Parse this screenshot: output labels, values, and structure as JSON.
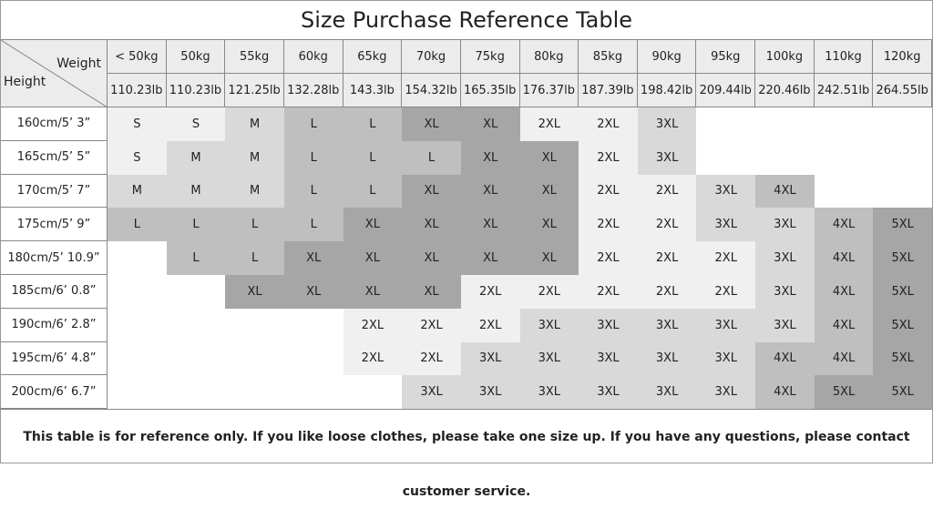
{
  "title": "Size Purchase Reference Table",
  "table": {
    "weight_label": "Weight",
    "height_label": "Height",
    "weights_kg": [
      "< 50kg",
      "50kg",
      "55kg",
      "60kg",
      "65kg",
      "70kg",
      "75kg",
      "80kg",
      "85kg",
      "90kg",
      "95kg",
      "100kg",
      "110kg",
      "120kg"
    ],
    "weights_lb": [
      "110.23lb",
      "110.23lb",
      "121.25lb",
      "132.28lb",
      "143.3lb",
      "154.32lb",
      "165.35lb",
      "176.37lb",
      "187.39lb",
      "198.42lb",
      "209.44lb",
      "220.46lb",
      "242.51lb",
      "264.55lb"
    ],
    "size_colors": {
      "S": "#f0f0f0",
      "M": "#d9d9d9",
      "L": "#bfbfbf",
      "XL": "#a6a6a6",
      "2XL": "#f0f0f0",
      "3XL": "#d9d9d9",
      "4XL": "#bfbfbf",
      "5XL": "#a6a6a6"
    },
    "rows": [
      {
        "height": "160cm/5’ 3”",
        "sizes": [
          "S",
          "S",
          "M",
          "L",
          "L",
          "XL",
          "XL",
          "2XL",
          "2XL",
          "3XL",
          null,
          null,
          null,
          null
        ]
      },
      {
        "height": "165cm/5’ 5”",
        "sizes": [
          "S",
          "M",
          "M",
          "L",
          "L",
          "L",
          "XL",
          "XL",
          "2XL",
          "3XL",
          null,
          null,
          null,
          null
        ]
      },
      {
        "height": "170cm/5’ 7”",
        "sizes": [
          "M",
          "M",
          "M",
          "L",
          "L",
          "XL",
          "XL",
          "XL",
          "2XL",
          "2XL",
          "3XL",
          "4XL",
          null,
          null
        ]
      },
      {
        "height": "175cm/5’ 9”",
        "sizes": [
          "L",
          "L",
          "L",
          "L",
          "XL",
          "XL",
          "XL",
          "XL",
          "2XL",
          "2XL",
          "3XL",
          "3XL",
          "4XL",
          "5XL"
        ]
      },
      {
        "height": "180cm/5’ 10.9”",
        "sizes": [
          null,
          "L",
          "L",
          "XL",
          "XL",
          "XL",
          "XL",
          "XL",
          "2XL",
          "2XL",
          "2XL",
          "3XL",
          "4XL",
          "5XL"
        ]
      },
      {
        "height": "185cm/6’ 0.8”",
        "sizes": [
          null,
          null,
          "XL",
          "XL",
          "XL",
          "XL",
          "2XL",
          "2XL",
          "2XL",
          "2XL",
          "2XL",
          "3XL",
          "4XL",
          "5XL"
        ]
      },
      {
        "height": "190cm/6’ 2.8”",
        "sizes": [
          null,
          null,
          null,
          null,
          "2XL",
          "2XL",
          "2XL",
          "3XL",
          "3XL",
          "3XL",
          "3XL",
          "3XL",
          "4XL",
          "5XL"
        ]
      },
      {
        "height": "195cm/6’ 4.8”",
        "sizes": [
          null,
          null,
          null,
          null,
          "2XL",
          "2XL",
          "3XL",
          "3XL",
          "3XL",
          "3XL",
          "3XL",
          "4XL",
          "4XL",
          "5XL"
        ]
      },
      {
        "height": "200cm/6’ 6.7”",
        "sizes": [
          null,
          null,
          null,
          null,
          null,
          "3XL",
          "3XL",
          "3XL",
          "3XL",
          "3XL",
          "3XL",
          "4XL",
          "5XL",
          "5XL"
        ]
      }
    ]
  },
  "footnote": "This table is for reference only. If you like loose clothes, please take one size up. If you have any questions, please contact customer service."
}
